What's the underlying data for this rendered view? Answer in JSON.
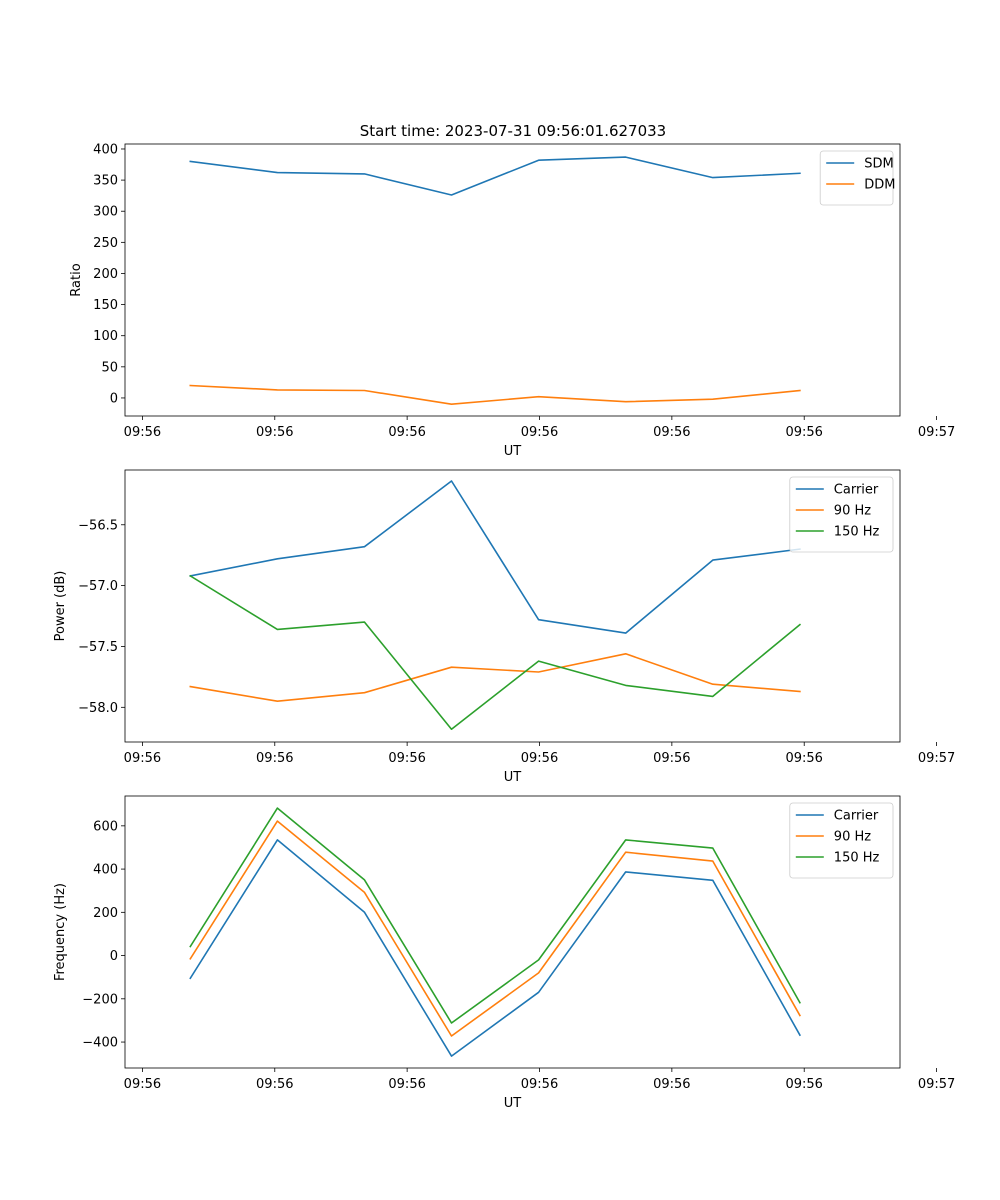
{
  "figure": {
    "title": "Start time: 2023-07-31 09:56:01.627033"
  },
  "chart_data": [
    {
      "type": "line",
      "title": "Start time: 2023-07-31 09:56:01.627033",
      "xlabel": "UT",
      "ylabel": "Ratio",
      "x_tick_labels": [
        "09:56",
        "09:56",
        "09:56",
        "09:56",
        "09:56",
        "09:56",
        "09:57"
      ],
      "x": [
        1,
        2,
        3,
        4,
        5,
        6,
        7,
        8
      ],
      "xlim": [
        0.25,
        9.15
      ],
      "x_tick_values": [
        0.45,
        1.97,
        3.49,
        5.01,
        6.53,
        8.05,
        9.57
      ],
      "ylim": [
        -29,
        408
      ],
      "y_ticks": [
        0,
        50,
        100,
        150,
        200,
        250,
        300,
        350,
        400
      ],
      "y_tick_labels": [
        "0",
        "50",
        "100",
        "150",
        "200",
        "250",
        "300",
        "350",
        "400"
      ],
      "legend": "top-right",
      "series": [
        {
          "name": "SDM",
          "color": "#1f77b4",
          "values": [
            380,
            362,
            360,
            326,
            382,
            387,
            354,
            361
          ]
        },
        {
          "name": "DDM",
          "color": "#ff7f0e",
          "values": [
            20,
            13,
            12,
            -10,
            2,
            -6,
            -2,
            12
          ]
        }
      ]
    },
    {
      "type": "line",
      "title": "",
      "xlabel": "UT",
      "ylabel": "Power (dB)",
      "x_tick_labels": [
        "09:56",
        "09:56",
        "09:56",
        "09:56",
        "09:56",
        "09:56",
        "09:57"
      ],
      "x": [
        1,
        2,
        3,
        4,
        5,
        6,
        7,
        8
      ],
      "xlim": [
        0.25,
        9.15
      ],
      "x_tick_values": [
        0.45,
        1.97,
        3.49,
        5.01,
        6.53,
        8.05,
        9.57
      ],
      "ylim": [
        -58.285,
        -56.05
      ],
      "y_ticks": [
        -58.0,
        -57.5,
        -57.0,
        -56.5
      ],
      "y_tick_labels": [
        "−58.0",
        "−57.5",
        "−57.0",
        "−56.5"
      ],
      "legend": "top-right",
      "series": [
        {
          "name": "Carrier",
          "color": "#1f77b4",
          "values": [
            -56.92,
            -56.78,
            -56.68,
            -56.14,
            -57.28,
            -57.39,
            -56.79,
            -56.7
          ]
        },
        {
          "name": "90 Hz",
          "color": "#ff7f0e",
          "values": [
            -57.83,
            -57.95,
            -57.88,
            -57.67,
            -57.71,
            -57.56,
            -57.81,
            -57.87
          ]
        },
        {
          "name": "150 Hz",
          "color": "#2ca02c",
          "values": [
            -56.92,
            -57.36,
            -57.3,
            -58.18,
            -57.62,
            -57.82,
            -57.91,
            -57.32
          ]
        }
      ]
    },
    {
      "type": "line",
      "title": "",
      "xlabel": "UT",
      "ylabel": "Frequency (Hz)",
      "x_tick_labels": [
        "09:56",
        "09:56",
        "09:56",
        "09:56",
        "09:56",
        "09:56",
        "09:57"
      ],
      "x": [
        1,
        2,
        3,
        4,
        5,
        6,
        7,
        8
      ],
      "xlim": [
        0.25,
        9.15
      ],
      "x_tick_values": [
        0.45,
        1.97,
        3.49,
        5.01,
        6.53,
        8.05,
        9.57
      ],
      "ylim": [
        -520,
        738
      ],
      "y_ticks": [
        -400,
        -200,
        0,
        200,
        400,
        600
      ],
      "y_tick_labels": [
        "−400",
        "−200",
        "0",
        "200",
        "400",
        "600"
      ],
      "legend": "top-right",
      "series": [
        {
          "name": "Carrier",
          "color": "#1f77b4",
          "values": [
            -105,
            535,
            200,
            -465,
            -170,
            387,
            348,
            -368
          ]
        },
        {
          "name": "90 Hz",
          "color": "#ff7f0e",
          "values": [
            -15,
            622,
            292,
            -372,
            -80,
            478,
            437,
            -277
          ]
        },
        {
          "name": "150 Hz",
          "color": "#2ca02c",
          "values": [
            42,
            682,
            350,
            -312,
            -20,
            535,
            497,
            -218
          ]
        }
      ]
    }
  ]
}
